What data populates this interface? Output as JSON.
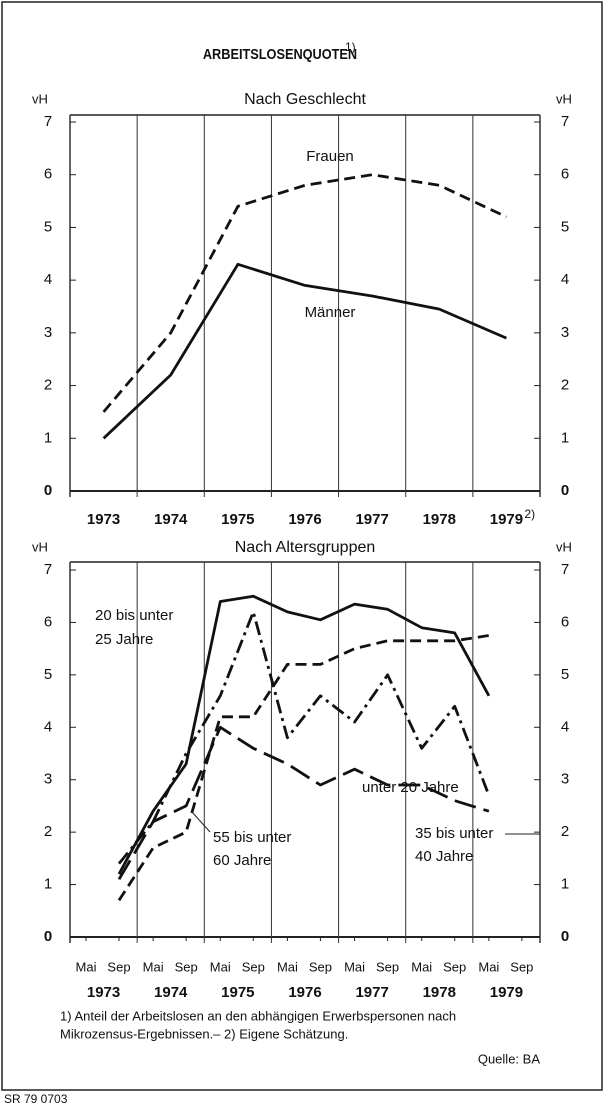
{
  "title": "ARBEITSLOSENQUOTEN",
  "title_note": "1)",
  "chart_data": [
    {
      "type": "line",
      "subtitle": "Nach Geschlecht",
      "y_label": "vH",
      "categories": [
        "1973",
        "1974",
        "1975",
        "1976",
        "1977",
        "1978",
        "1979"
      ],
      "last_category_note": "2)",
      "ylim": [
        0,
        7
      ],
      "yticks": [
        0,
        1,
        2,
        3,
        4,
        5,
        6,
        7
      ],
      "grid": false,
      "series": [
        {
          "name": "Frauen",
          "color": "#111111",
          "dash": "dashed",
          "values": [
            1.5,
            3.0,
            5.4,
            5.8,
            6.0,
            5.8,
            5.2
          ]
        },
        {
          "name": "Männer",
          "color": "#111111",
          "dash": "solid",
          "values": [
            1.0,
            2.2,
            4.3,
            3.9,
            3.7,
            3.45,
            2.9
          ]
        }
      ]
    },
    {
      "type": "line",
      "subtitle": "Nach Altersgruppen",
      "y_label": "vH",
      "categories": [
        "Mai",
        "Sep",
        "Mai",
        "Sep",
        "Mai",
        "Sep",
        "Mai",
        "Sep",
        "Mai",
        "Sep",
        "Mai",
        "Sep",
        "Mai",
        "Sep"
      ],
      "years": [
        "1973",
        "1974",
        "1975",
        "1976",
        "1977",
        "1978",
        "1979"
      ],
      "ylim": [
        0,
        7
      ],
      "yticks": [
        0,
        1,
        2,
        3,
        4,
        5,
        6,
        7
      ],
      "grid": false,
      "series": [
        {
          "label": [
            "20 bis unter",
            "25 Jahre"
          ],
          "color": "#111111",
          "dash": "solid",
          "values": [
            null,
            1.2,
            2.4,
            3.3,
            6.4,
            6.5,
            6.2,
            6.05,
            6.35,
            6.25,
            5.9,
            5.8,
            4.6,
            null
          ]
        },
        {
          "label": [
            "55 bis unter",
            "60 Jahre"
          ],
          "color": "#111111",
          "dash": "dashed",
          "values": [
            null,
            0.7,
            1.7,
            2.0,
            4.2,
            4.2,
            5.2,
            5.2,
            5.5,
            5.65,
            5.65,
            5.65,
            5.75,
            null
          ]
        },
        {
          "label": [
            "unter 20 Jahre"
          ],
          "color": "#111111",
          "dash": "dashdot",
          "values": [
            null,
            1.4,
            2.2,
            3.5,
            4.6,
            6.2,
            3.8,
            4.6,
            4.1,
            5.0,
            3.6,
            4.4,
            2.7,
            null
          ]
        },
        {
          "label": [
            "35 bis unter",
            "40 Jahre"
          ],
          "color": "#111111",
          "dash": "longdash",
          "values": [
            null,
            1.1,
            2.2,
            2.5,
            4.0,
            3.6,
            3.3,
            2.9,
            3.2,
            2.9,
            2.9,
            2.6,
            2.4,
            null
          ]
        }
      ]
    }
  ],
  "footnote": [
    "1) Anteil der Arbeitslosen an den abhängigen Erwerbspersonen nach",
    "Mikrozensus-Ergebnissen.– 2) Eigene Schätzung."
  ],
  "source": "Quelle: BA",
  "code": "SR 79 0703"
}
